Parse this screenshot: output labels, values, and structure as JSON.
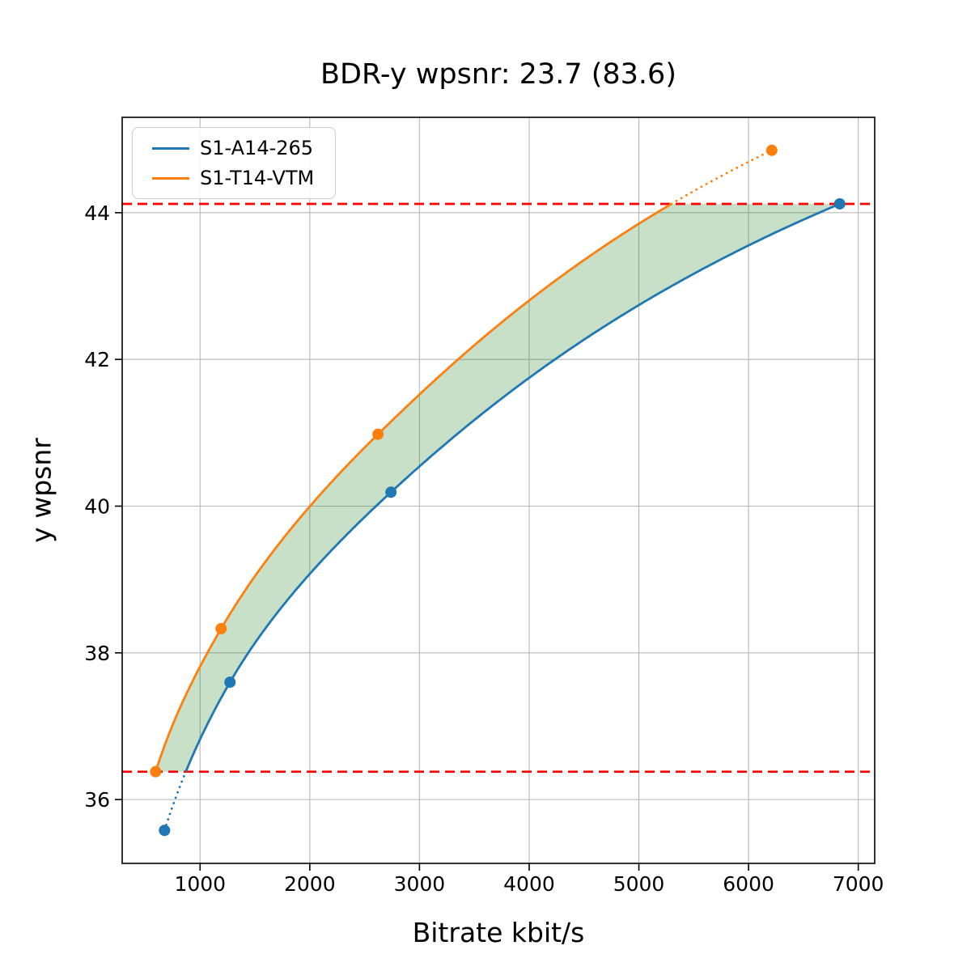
{
  "chart_data": {
    "type": "line",
    "title": "BDR-y wpsnr: 23.7 (83.6)",
    "xlabel": "Bitrate kbit/s",
    "ylabel": "y wpsnr",
    "xlim": [
      290,
      7150
    ],
    "ylim": [
      35.13,
      45.3
    ],
    "x_ticks": [
      1000,
      2000,
      3000,
      4000,
      5000,
      6000,
      7000
    ],
    "y_ticks": [
      36,
      38,
      40,
      42,
      44
    ],
    "grid": true,
    "legend_position": "upper left",
    "interpolation": "pchip-on-log-bitrate",
    "series": [
      {
        "name": "S1-A14-265",
        "color": "#1f77b4",
        "points": [
          [
            676,
            35.58
          ],
          [
            1273,
            37.6
          ],
          [
            2740,
            40.19
          ],
          [
            6831,
            44.12
          ]
        ]
      },
      {
        "name": "S1-T14-VTM",
        "color": "#ff7f0e",
        "points": [
          [
            595,
            36.38
          ],
          [
            1192,
            38.33
          ],
          [
            2622,
            40.98
          ],
          [
            6212,
            44.85
          ]
        ]
      }
    ],
    "overlap": {
      "lower": 36.38,
      "upper": 44.12,
      "line_color": "#ff0000",
      "line_style": "dashed",
      "fill_color": "rgba(0,115,0,0.22)"
    },
    "colors": {
      "grid": "#b8b8b8",
      "spine": "#000000",
      "background": "#ffffff"
    }
  }
}
